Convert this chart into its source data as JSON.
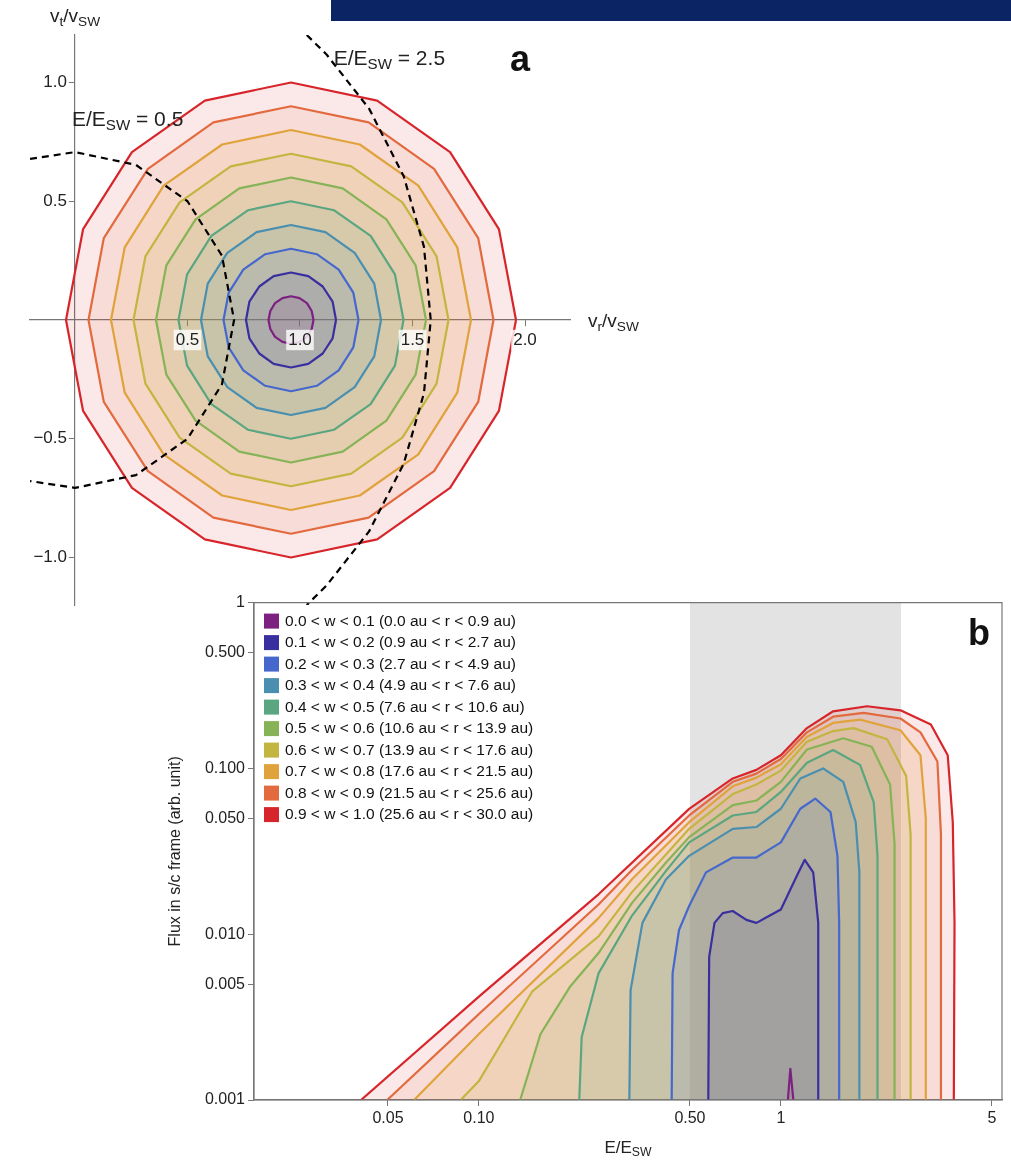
{
  "chart_data": [
    {
      "type": "area",
      "title": "a",
      "xlabel": "v$_{r}$/v$_{SW}$",
      "ylabel": "v$_{t}$/v$_{SW}$",
      "xlim": [
        -0.2,
        2.2
      ],
      "ylim": [
        -1.2,
        1.2
      ],
      "xticks": [
        0.5,
        {
          "value": 1,
          "label": "1.0"
        },
        1.5,
        {
          "value": 2,
          "label": "2.0"
        }
      ],
      "yticks": [
        {
          "value": -1,
          "label": "−1.0"
        },
        {
          "value": -0.5,
          "label": "−0.5"
        },
        0.5,
        {
          "value": 1,
          "label": "1.0"
        }
      ],
      "grid": false,
      "marker": "none",
      "annotations": [
        "E/E$_{SW}$ = 0.5",
        {
          "text": "E/E$_{SW}$ = 2.5",
          "x": 1.15,
          "y": 1.1
        }
      ],
      "series": [
        {
          "color": "#7d2181",
          "x": [
            1.06,
            1.052,
            1.031,
            0.998,
            0.96,
            0.922,
            0.889,
            0.868,
            0.86,
            0.868,
            0.889,
            0.922,
            0.96,
            0.998,
            1.031,
            1.052,
            1.06
          ],
          "values": [
            0,
            0.038,
            0.071,
            0.092,
            0.1,
            0.092,
            0.071,
            0.038,
            0,
            -0.038,
            -0.071,
            -0.092,
            -0.1,
            -0.092,
            -0.071,
            -0.038,
            0
          ]
        },
        {
          "color": "#3a2f9e",
          "x": [
            1.16,
            1.145,
            1.101,
            1.037,
            0.96,
            0.883,
            0.819,
            0.775,
            0.76,
            0.775,
            0.819,
            0.883,
            0.96,
            1.037,
            1.101,
            1.145,
            1.16
          ],
          "values": [
            0,
            0.077,
            0.141,
            0.185,
            0.2,
            0.185,
            0.141,
            0.077,
            0,
            -0.077,
            -0.141,
            -0.185,
            -0.2,
            -0.185,
            -0.141,
            -0.077,
            0
          ]
        },
        {
          "color": "#4668cc",
          "x": [
            1.26,
            1.237,
            1.172,
            1.075,
            0.96,
            0.845,
            0.748,
            0.683,
            0.66,
            0.683,
            0.748,
            0.845,
            0.96,
            1.075,
            1.172,
            1.237,
            1.26
          ],
          "values": [
            0,
            0.115,
            0.212,
            0.277,
            0.3,
            0.277,
            0.212,
            0.115,
            0,
            -0.115,
            -0.212,
            -0.277,
            -0.3,
            -0.277,
            -0.212,
            -0.115,
            0
          ]
        },
        {
          "color": "#4a8fb0",
          "x": [
            1.36,
            1.33,
            1.243,
            1.113,
            0.96,
            0.807,
            0.677,
            0.59,
            0.56,
            0.59,
            0.677,
            0.807,
            0.96,
            1.113,
            1.243,
            1.33,
            1.36
          ],
          "values": [
            0,
            0.153,
            0.283,
            0.37,
            0.4,
            0.37,
            0.283,
            0.153,
            0,
            -0.153,
            -0.283,
            -0.37,
            -0.4,
            -0.37,
            -0.283,
            -0.153,
            0
          ]
        },
        {
          "color": "#5aa680",
          "x": [
            1.46,
            1.422,
            1.314,
            1.152,
            0.96,
            0.768,
            0.606,
            0.498,
            0.46,
            0.498,
            0.606,
            0.768,
            0.96,
            1.152,
            1.314,
            1.422,
            1.46
          ],
          "values": [
            0,
            0.192,
            0.354,
            0.462,
            0.5,
            0.462,
            0.354,
            0.192,
            0,
            -0.192,
            -0.354,
            -0.462,
            -0.5,
            -0.462,
            -0.354,
            -0.192,
            0
          ]
        },
        {
          "color": "#86b356",
          "x": [
            1.56,
            1.514,
            1.384,
            1.19,
            0.96,
            0.73,
            0.536,
            0.406,
            0.36,
            0.406,
            0.536,
            0.73,
            0.96,
            1.19,
            1.384,
            1.514,
            1.56
          ],
          "values": [
            0,
            0.23,
            0.424,
            0.554,
            0.6,
            0.554,
            0.424,
            0.23,
            0,
            -0.23,
            -0.424,
            -0.554,
            -0.6,
            -0.554,
            -0.424,
            -0.23,
            0
          ]
        },
        {
          "color": "#c2b540",
          "x": [
            1.66,
            1.607,
            1.455,
            1.228,
            0.96,
            0.692,
            0.465,
            0.313,
            0.26,
            0.313,
            0.465,
            0.692,
            0.96,
            1.228,
            1.455,
            1.607,
            1.66
          ],
          "values": [
            0,
            0.268,
            0.495,
            0.647,
            0.7,
            0.647,
            0.495,
            0.268,
            0,
            -0.268,
            -0.495,
            -0.647,
            -0.7,
            -0.647,
            -0.495,
            -0.268,
            0
          ]
        },
        {
          "color": "#e0a33c",
          "x": [
            1.76,
            1.699,
            1.526,
            1.266,
            0.96,
            0.654,
            0.394,
            0.221,
            0.16,
            0.221,
            0.394,
            0.654,
            0.96,
            1.266,
            1.526,
            1.699,
            1.76
          ],
          "values": [
            0,
            0.306,
            0.566,
            0.739,
            0.8,
            0.739,
            0.566,
            0.306,
            0,
            -0.306,
            -0.566,
            -0.739,
            -0.8,
            -0.739,
            -0.566,
            -0.306,
            0
          ]
        },
        {
          "color": "#e26a3e",
          "x": [
            1.86,
            1.792,
            1.596,
            1.305,
            0.96,
            0.615,
            0.324,
            0.128,
            0.06,
            0.128,
            0.324,
            0.615,
            0.96,
            1.305,
            1.596,
            1.792,
            1.86
          ],
          "values": [
            0,
            0.345,
            0.636,
            0.832,
            0.9,
            0.832,
            0.636,
            0.345,
            0,
            -0.345,
            -0.636,
            -0.832,
            -0.9,
            -0.832,
            -0.636,
            -0.345,
            0
          ]
        },
        {
          "color": "#d7262b",
          "x": [
            1.96,
            1.884,
            1.667,
            1.343,
            0.96,
            0.577,
            0.253,
            0.036,
            -0.04,
            0.036,
            0.253,
            0.577,
            0.96,
            1.343,
            1.667,
            1.884,
            1.96
          ],
          "values": [
            0,
            0.383,
            0.707,
            0.924,
            1,
            0.924,
            0.707,
            0.383,
            0,
            -0.383,
            -0.707,
            -0.924,
            -1,
            -0.924,
            -0.707,
            -0.383,
            0
          ]
        },
        {
          "type": "line",
          "color": "#000000",
          "line_style": "dashed",
          "x": [
            -0.2,
            0,
            0.271,
            0.5,
            0.653,
            0.707,
            0.653,
            0.5,
            0.271,
            0,
            -0.2
          ],
          "values": [
            0.678,
            0.707,
            0.653,
            0.5,
            0.271,
            0,
            -0.271,
            -0.5,
            -0.653,
            -0.707,
            -0.678
          ]
        },
        {
          "type": "line",
          "color": "#000000",
          "line_style": "dashed",
          "x": [
            1.03,
            1.118,
            1.307,
            1.461,
            1.551,
            1.581,
            1.551,
            1.461,
            1.307,
            1.118,
            1.03
          ],
          "values": [
            1.2,
            1.118,
            0.89,
            0.605,
            0.308,
            0,
            -0.308,
            -0.605,
            -0.89,
            -1.118,
            -1.2
          ]
        }
      ]
    },
    {
      "type": "area",
      "title": "b",
      "xlabel": "E/E$_{SW}$",
      "ylabel": "Flux in s/c frame (arb. unit)",
      "log": "xy",
      "xlim": [
        0.018,
        5.4
      ],
      "ylim": [
        0.001,
        1
      ],
      "xticks": [
        0.05,
        {
          "value": 0.1,
          "label": "0.10"
        },
        {
          "value": 0.5,
          "label": "0.50"
        },
        1,
        5
      ],
      "yticks": [
        0.001,
        0.005,
        {
          "value": 0.01,
          "label": "0.010"
        },
        {
          "value": 0.05,
          "label": "0.050"
        },
        {
          "value": 0.1,
          "label": "0.100"
        },
        {
          "value": 0.5,
          "label": "0.500"
        },
        1
      ],
      "grid": false,
      "legend": "top left",
      "marker": "none",
      "bands": [
        {
          "axis": "x",
          "from": 0.5,
          "to": 2.5,
          "color": "#e3e3e3"
        }
      ],
      "series": [
        {
          "name": "0.0 < w < 0.1 (0.0 au < r < 0.9 au)",
          "color": "#7d2181",
          "x": [
            1.055,
            1.075,
            1.1
          ],
          "values": [
            0.001,
            0.00154,
            0.001
          ]
        },
        {
          "name": "0.1 < w < 0.2 (0.9 au < r < 2.7 au)",
          "color": "#3a2f9e",
          "x": [
            0.575,
            0.579,
            0.603,
            0.642,
            0.693,
            0.769,
            0.83,
            1.0,
            1.13,
            1.2,
            1.28,
            1.33,
            1.33
          ],
          "values": [
            0.001,
            0.0073,
            0.0117,
            0.0134,
            0.0138,
            0.0122,
            0.0117,
            0.0141,
            0.0225,
            0.0281,
            0.0236,
            0.0117,
            0.001
          ]
        },
        {
          "name": "0.2 < w < 0.3 (2.7 au < r < 4.9 au)",
          "color": "#4668cc",
          "x": [
            0.435,
            0.438,
            0.46,
            0.497,
            0.565,
            0.693,
            0.83,
            1.0,
            1.16,
            1.3,
            1.46,
            1.54,
            1.56,
            1.56
          ],
          "values": [
            0.001,
            0.0058,
            0.0106,
            0.0148,
            0.0236,
            0.029,
            0.029,
            0.0358,
            0.0571,
            0.0658,
            0.0546,
            0.0297,
            0.0117,
            0.001
          ]
        },
        {
          "name": "0.3 < w < 0.4 (4.9 au < r < 7.6 au)",
          "color": "#4a8fb0",
          "x": [
            0.315,
            0.318,
            0.348,
            0.416,
            0.497,
            0.693,
            0.83,
            1.0,
            1.16,
            1.38,
            1.61,
            1.77,
            1.82,
            1.82
          ],
          "values": [
            0.001,
            0.0046,
            0.0117,
            0.0214,
            0.0297,
            0.0432,
            0.0443,
            0.0571,
            0.0869,
            0.1,
            0.083,
            0.0474,
            0.0236,
            0.001
          ]
        },
        {
          "name": "0.4 < w < 0.5 (7.6 au < r < 10.6 au)",
          "color": "#5aa680",
          "x": [
            0.215,
            0.219,
            0.249,
            0.322,
            0.416,
            0.497,
            0.693,
            0.83,
            1.0,
            1.22,
            1.49,
            1.83,
            2.03,
            2.09,
            2.09
          ],
          "values": [
            0.001,
            0.0024,
            0.0058,
            0.013,
            0.024,
            0.0358,
            0.052,
            0.0546,
            0.0721,
            0.108,
            0.129,
            0.105,
            0.0627,
            0.0297,
            0.001
          ]
        },
        {
          "name": "0.5 < w < 0.6 (10.6 au < r < 13.9 au)",
          "color": "#86b356",
          "x": [
            0.137,
            0.16,
            0.2,
            0.249,
            0.322,
            0.416,
            0.497,
            0.693,
            0.83,
            1.0,
            1.22,
            1.61,
            2.0,
            2.3,
            2.38,
            2.38
          ],
          "values": [
            0.001,
            0.0025,
            0.0048,
            0.0077,
            0.0155,
            0.027,
            0.0385,
            0.06,
            0.064,
            0.083,
            0.13,
            0.152,
            0.135,
            0.08,
            0.035,
            0.001
          ]
        },
        {
          "name": "0.6 < w < 0.7 (13.9 au < r < 17.6 au)",
          "color": "#c2b540",
          "x": [
            0.087,
            0.1,
            0.15,
            0.249,
            0.322,
            0.497,
            0.693,
            0.83,
            1.0,
            1.22,
            1.49,
            1.74,
            2.25,
            2.6,
            2.69,
            2.69
          ],
          "values": [
            0.001,
            0.0013,
            0.0045,
            0.0097,
            0.018,
            0.0432,
            0.07,
            0.08,
            0.097,
            0.145,
            0.168,
            0.175,
            0.15,
            0.09,
            0.04,
            0.001
          ]
        },
        {
          "name": "0.7 < w < 0.8 (17.6 au < r < 21.5 au)",
          "color": "#e0a33c",
          "x": [
            0.061,
            0.1,
            0.249,
            0.322,
            0.497,
            0.693,
            0.83,
            1.0,
            1.22,
            1.49,
            1.83,
            2.49,
            2.9,
            3.02,
            3.02
          ],
          "values": [
            0.001,
            0.0025,
            0.0125,
            0.0215,
            0.0474,
            0.078,
            0.088,
            0.106,
            0.155,
            0.188,
            0.197,
            0.17,
            0.12,
            0.05,
            0.001
          ]
        },
        {
          "name": "0.8 < w < 0.9 (21.5 au < r < 25.6 au)",
          "color": "#e26a3e",
          "x": [
            0.0497,
            0.1,
            0.249,
            0.322,
            0.497,
            0.693,
            0.83,
            1.0,
            1.22,
            1.49,
            1.88,
            2.49,
            2.9,
            3.3,
            3.39,
            3.39
          ],
          "values": [
            0.001,
            0.0033,
            0.0151,
            0.0245,
            0.052,
            0.083,
            0.093,
            0.114,
            0.165,
            0.205,
            0.216,
            0.2,
            0.165,
            0.11,
            0.04,
            0.001
          ]
        },
        {
          "name": "0.9 < w < 1.0 (25.6 au < r < 30.0 au)",
          "color": "#d7262b",
          "x": [
            0.0407,
            0.1,
            0.249,
            0.497,
            0.693,
            0.83,
            1.0,
            1.22,
            1.49,
            1.93,
            2.49,
            3.14,
            3.57,
            3.71,
            3.76,
            3.74
          ],
          "values": [
            0.001,
            0.0042,
            0.0174,
            0.057,
            0.087,
            0.098,
            0.12,
            0.175,
            0.221,
            0.237,
            0.224,
            0.184,
            0.12,
            0.0475,
            0.0117,
            0.001
          ]
        }
      ]
    }
  ]
}
